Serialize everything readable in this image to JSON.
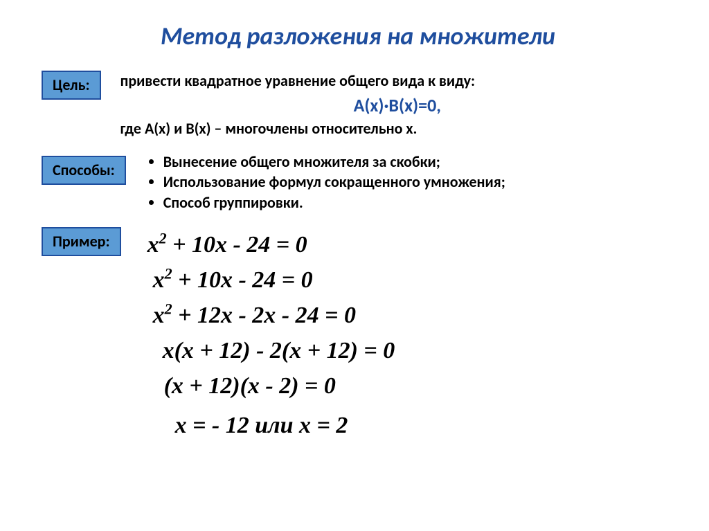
{
  "colors": {
    "title": "#1f4e9e",
    "box_fill": "#5b9bd5",
    "box_border": "#1f4e9e",
    "text": "#000000",
    "background": "#ffffff"
  },
  "fonts": {
    "title_size": 36,
    "body_size": 22,
    "formula_size": 26,
    "equation_size": 34,
    "equation_family": "Times New Roman",
    "body_family": "Calibri"
  },
  "title": "Метод разложения на множители",
  "goal": {
    "label": "Цель:",
    "text": "привести квадратное уравнение общего вида к виду:",
    "formula": "А(х)·В(х)=0,",
    "where": "где А(х) и В(х) – многочлены относительно х."
  },
  "methods": {
    "label": "Способы:",
    "items": [
      "Вынесение общего множителя за скобки;",
      "Использование формул сокращенного умножения;",
      "Способ группировки."
    ]
  },
  "example": {
    "label": "Пример:",
    "eq1_a": "x",
    "eq1_b": " + 10x - 24 = 0",
    "eq2_a": "x",
    "eq2_b": " + 10x - 24 = 0",
    "eq3_a": "x",
    "eq3_b": " + 12x - 2x - 24 = 0",
    "eq4": "x(x + 12) - 2(x + 12) = 0",
    "eq5": "(x + 12)(x - 2) = 0",
    "eq6": "x = - 12 или  x = 2"
  }
}
